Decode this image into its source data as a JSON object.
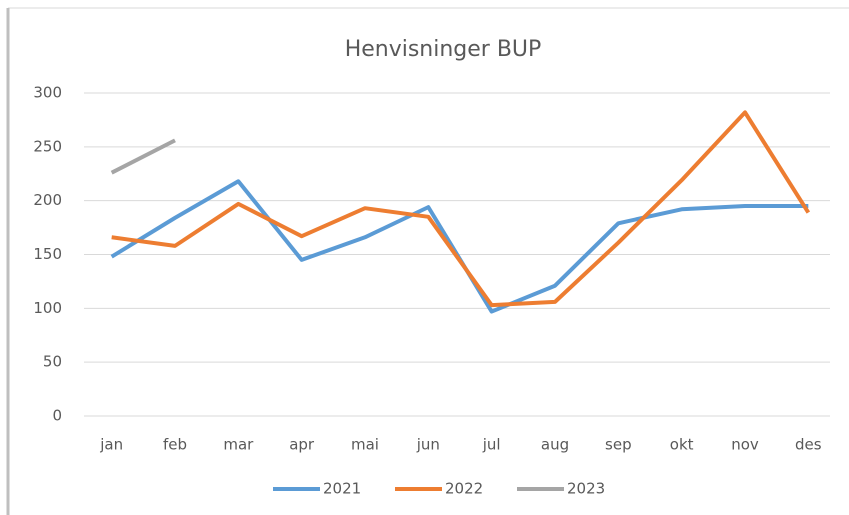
{
  "chart_data": {
    "type": "line",
    "title": "Henvisninger BUP",
    "categories": [
      "jan",
      "feb",
      "mar",
      "apr",
      "mai",
      "jun",
      "jul",
      "aug",
      "sep",
      "okt",
      "nov",
      "des"
    ],
    "series": [
      {
        "name": "2021",
        "color": "#5b9bd5",
        "values": [
          148,
          184,
          218,
          145,
          166,
          194,
          97,
          121,
          179,
          192,
          195,
          195
        ]
      },
      {
        "name": "2022",
        "color": "#ed7d31",
        "values": [
          166,
          158,
          197,
          167,
          193,
          185,
          103,
          106,
          161,
          219,
          282,
          189
        ]
      },
      {
        "name": "2023",
        "color": "#a5a5a5",
        "values": [
          226,
          256,
          null,
          null,
          null,
          null,
          null,
          null,
          null,
          null,
          null,
          null
        ]
      }
    ],
    "ylim": [
      0,
      300
    ],
    "yticks": [
      0,
      50,
      100,
      150,
      200,
      250,
      300
    ],
    "grid": true,
    "legend": "bottom"
  }
}
